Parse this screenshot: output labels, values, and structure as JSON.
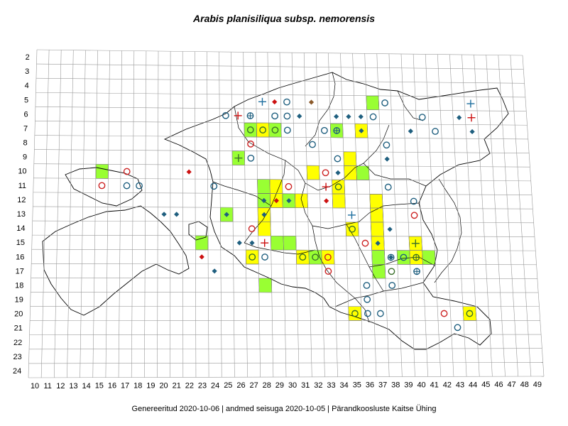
{
  "title": "Arabis planisiliqua subsp. nemorensis",
  "footer": {
    "generated": "Genereeritud 2020-10-06",
    "data_state": "andmed seisuga 2020-10-05",
    "org": "Pärandkoosluste Kaitse Ühing",
    "separator": "|"
  },
  "grid": {
    "x_labels": [
      "10",
      "11",
      "12",
      "13",
      "14",
      "15",
      "16",
      "17",
      "18",
      "19",
      "20",
      "21",
      "22",
      "23",
      "24",
      "25",
      "26",
      "27",
      "28",
      "29",
      "30",
      "31",
      "32",
      "33",
      "34",
      "35",
      "36",
      "37",
      "38",
      "39",
      "40",
      "41",
      "42",
      "43",
      "44",
      "45",
      "46",
      "47",
      "48",
      "49"
    ],
    "y_labels": [
      "2",
      "3",
      "4",
      "5",
      "6",
      "7",
      "8",
      "9",
      "10",
      "11",
      "12",
      "13",
      "14",
      "15",
      "16",
      "17",
      "18",
      "19",
      "20",
      "21",
      "22",
      "23",
      "24"
    ]
  },
  "colors": {
    "green": "#99ff33",
    "yellow": "#ffff00",
    "circle_blue": "#1f5f7f",
    "circle_red": "#cc2222",
    "diamond_blue": "#1f5f7f",
    "diamond_red": "#cc1111",
    "diamond_brown": "#8b5a2b",
    "plus_red": "#cc1111",
    "plus_blue": "#1f6f9f"
  },
  "cells": [
    {
      "c": 15,
      "r": 10,
      "fill": "green"
    },
    {
      "c": 23,
      "r": 15,
      "fill": "green"
    },
    {
      "c": 25,
      "r": 13,
      "fill": "green"
    },
    {
      "c": 26,
      "r": 9,
      "fill": "green"
    },
    {
      "c": 27,
      "r": 7,
      "fill": "green"
    },
    {
      "c": 28,
      "r": 7,
      "fill": "yellow"
    },
    {
      "c": 29,
      "r": 7,
      "fill": "green"
    },
    {
      "c": 27,
      "r": 16,
      "fill": "yellow"
    },
    {
      "c": 28,
      "r": 11,
      "fill": "green"
    },
    {
      "c": 28,
      "r": 12,
      "fill": "green"
    },
    {
      "c": 28,
      "r": 13,
      "fill": "yellow"
    },
    {
      "c": 28,
      "r": 14,
      "fill": "yellow"
    },
    {
      "c": 28,
      "r": 18,
      "fill": "green"
    },
    {
      "c": 29,
      "r": 11,
      "fill": "yellow"
    },
    {
      "c": 29,
      "r": 12,
      "fill": "yellow"
    },
    {
      "c": 29,
      "r": 15,
      "fill": "green"
    },
    {
      "c": 30,
      "r": 12,
      "fill": "green"
    },
    {
      "c": 30,
      "r": 15,
      "fill": "green"
    },
    {
      "c": 31,
      "r": 12,
      "fill": "yellow"
    },
    {
      "c": 31,
      "r": 16,
      "fill": "yellow"
    },
    {
      "c": 32,
      "r": 10,
      "fill": "yellow"
    },
    {
      "c": 32,
      "r": 16,
      "fill": "green"
    },
    {
      "c": 33,
      "r": 16,
      "fill": "yellow"
    },
    {
      "c": 34,
      "r": 11,
      "fill": "yellow"
    },
    {
      "c": 34,
      "r": 12,
      "fill": "yellow"
    },
    {
      "c": 34,
      "r": 7,
      "fill": "green"
    },
    {
      "c": 35,
      "r": 9,
      "fill": "yellow"
    },
    {
      "c": 35,
      "r": 10,
      "fill": "yellow"
    },
    {
      "c": 35,
      "r": 14,
      "fill": "yellow"
    },
    {
      "c": 35,
      "r": 20,
      "fill": "yellow"
    },
    {
      "c": 36,
      "r": 7,
      "fill": "yellow"
    },
    {
      "c": 36,
      "r": 10,
      "fill": "green"
    },
    {
      "c": 37,
      "r": 5,
      "fill": "green"
    },
    {
      "c": 37,
      "r": 12,
      "fill": "yellow"
    },
    {
      "c": 37,
      "r": 13,
      "fill": "yellow"
    },
    {
      "c": 37,
      "r": 14,
      "fill": "yellow"
    },
    {
      "c": 37,
      "r": 15,
      "fill": "yellow"
    },
    {
      "c": 37,
      "r": 16,
      "fill": "green"
    },
    {
      "c": 37,
      "r": 17,
      "fill": "green"
    },
    {
      "c": 39,
      "r": 16,
      "fill": "green"
    },
    {
      "c": 40,
      "r": 15,
      "fill": "yellow"
    },
    {
      "c": 40,
      "r": 16,
      "fill": "yellow"
    },
    {
      "c": 41,
      "r": 16,
      "fill": "green"
    },
    {
      "c": 44,
      "r": 20,
      "fill": "yellow"
    }
  ],
  "markers": [
    {
      "c": 15,
      "r": 11,
      "t": "circle",
      "k": "red"
    },
    {
      "c": 17,
      "r": 10,
      "t": "circle",
      "k": "red"
    },
    {
      "c": 17,
      "r": 11,
      "t": "circle",
      "k": "blue"
    },
    {
      "c": 18,
      "r": 11,
      "t": "circle",
      "k": "blue"
    },
    {
      "c": 22,
      "r": 10,
      "t": "diamond",
      "k": "red"
    },
    {
      "c": 20,
      "r": 13,
      "t": "diamond",
      "k": "blue"
    },
    {
      "c": 21,
      "r": 13,
      "t": "diamond",
      "k": "blue"
    },
    {
      "c": 23,
      "r": 16,
      "t": "diamond",
      "k": "red"
    },
    {
      "c": 24,
      "r": 17,
      "t": "diamond",
      "k": "blue"
    },
    {
      "c": 24,
      "r": 11,
      "t": "circle",
      "k": "blue"
    },
    {
      "c": 25,
      "r": 6,
      "t": "circle",
      "k": "blue"
    },
    {
      "c": 25,
      "r": 13,
      "t": "diamond",
      "k": "blue"
    },
    {
      "c": 26,
      "r": 6,
      "t": "plus",
      "k": "red"
    },
    {
      "c": 26,
      "r": 9,
      "t": "plus",
      "k": "green"
    },
    {
      "c": 26,
      "r": 15,
      "t": "diamond",
      "k": "blue"
    },
    {
      "c": 27,
      "r": 6,
      "t": "circleplus",
      "k": "blue"
    },
    {
      "c": 27,
      "r": 7,
      "t": "circle",
      "k": "green"
    },
    {
      "c": 27,
      "r": 8,
      "t": "circle",
      "k": "red"
    },
    {
      "c": 27,
      "r": 9,
      "t": "circle",
      "k": "blue"
    },
    {
      "c": 27,
      "r": 14,
      "t": "circle",
      "k": "red"
    },
    {
      "c": 27,
      "r": 15,
      "t": "diamond",
      "k": "blue"
    },
    {
      "c": 27,
      "r": 16,
      "t": "circle",
      "k": "green"
    },
    {
      "c": 28,
      "r": 5,
      "t": "plus",
      "k": "blue"
    },
    {
      "c": 28,
      "r": 7,
      "t": "circle",
      "k": "green"
    },
    {
      "c": 28,
      "r": 12,
      "t": "diamond",
      "k": "blue"
    },
    {
      "c": 28,
      "r": 13,
      "t": "diamond",
      "k": "blue"
    },
    {
      "c": 28,
      "r": 15,
      "t": "plus",
      "k": "red"
    },
    {
      "c": 28,
      "r": 16,
      "t": "circle",
      "k": "blue"
    },
    {
      "c": 29,
      "r": 5,
      "t": "diamond",
      "k": "red"
    },
    {
      "c": 29,
      "r": 6,
      "t": "circle",
      "k": "blue"
    },
    {
      "c": 29,
      "r": 7,
      "t": "circle",
      "k": "green"
    },
    {
      "c": 29,
      "r": 12,
      "t": "diamond",
      "k": "red"
    },
    {
      "c": 30,
      "r": 5,
      "t": "circle",
      "k": "blue"
    },
    {
      "c": 30,
      "r": 6,
      "t": "circle",
      "k": "blue"
    },
    {
      "c": 30,
      "r": 7,
      "t": "circle",
      "k": "blue"
    },
    {
      "c": 30,
      "r": 11,
      "t": "circle",
      "k": "red"
    },
    {
      "c": 30,
      "r": 12,
      "t": "diamond",
      "k": "blue"
    },
    {
      "c": 31,
      "r": 6,
      "t": "diamond",
      "k": "blue"
    },
    {
      "c": 31,
      "r": 16,
      "t": "circle",
      "k": "green"
    },
    {
      "c": 32,
      "r": 5,
      "t": "diamond",
      "k": "brown"
    },
    {
      "c": 32,
      "r": 8,
      "t": "circle",
      "k": "blue"
    },
    {
      "c": 32,
      "r": 16,
      "t": "circle",
      "k": "green"
    },
    {
      "c": 33,
      "r": 7,
      "t": "circle",
      "k": "blue"
    },
    {
      "c": 33,
      "r": 10,
      "t": "circle",
      "k": "red"
    },
    {
      "c": 33,
      "r": 11,
      "t": "plus",
      "k": "red"
    },
    {
      "c": 33,
      "r": 12,
      "t": "diamond",
      "k": "red"
    },
    {
      "c": 33,
      "r": 16,
      "t": "circle",
      "k": "red"
    },
    {
      "c": 33,
      "r": 17,
      "t": "circle",
      "k": "red"
    },
    {
      "c": 34,
      "r": 6,
      "t": "diamond",
      "k": "blue"
    },
    {
      "c": 34,
      "r": 7,
      "t": "circleplus",
      "k": "blue"
    },
    {
      "c": 34,
      "r": 9,
      "t": "circle",
      "k": "blue"
    },
    {
      "c": 34,
      "r": 10,
      "t": "diamond",
      "k": "blue"
    },
    {
      "c": 34,
      "r": 11,
      "t": "circle",
      "k": "green"
    },
    {
      "c": 35,
      "r": 6,
      "t": "diamond",
      "k": "blue"
    },
    {
      "c": 35,
      "r": 13,
      "t": "plus",
      "k": "blue"
    },
    {
      "c": 35,
      "r": 14,
      "t": "circle",
      "k": "green"
    },
    {
      "c": 35,
      "r": 20,
      "t": "circle",
      "k": "green"
    },
    {
      "c": 36,
      "r": 6,
      "t": "diamond",
      "k": "blue"
    },
    {
      "c": 36,
      "r": 7,
      "t": "diamond",
      "k": "blue"
    },
    {
      "c": 36,
      "r": 15,
      "t": "circle",
      "k": "red"
    },
    {
      "c": 36,
      "r": 18,
      "t": "circle",
      "k": "blue"
    },
    {
      "c": 36,
      "r": 19,
      "t": "circle",
      "k": "blue"
    },
    {
      "c": 36,
      "r": 20,
      "t": "circle",
      "k": "blue"
    },
    {
      "c": 37,
      "r": 6,
      "t": "circle",
      "k": "blue"
    },
    {
      "c": 37,
      "r": 15,
      "t": "diamond",
      "k": "blue"
    },
    {
      "c": 37,
      "r": 20,
      "t": "circle",
      "k": "blue"
    },
    {
      "c": 38,
      "r": 5,
      "t": "circle",
      "k": "blue"
    },
    {
      "c": 38,
      "r": 8,
      "t": "circle",
      "k": "blue"
    },
    {
      "c": 38,
      "r": 9,
      "t": "diamond",
      "k": "blue"
    },
    {
      "c": 38,
      "r": 11,
      "t": "circle",
      "k": "blue"
    },
    {
      "c": 38,
      "r": 14,
      "t": "diamond",
      "k": "blue"
    },
    {
      "c": 38,
      "r": 16,
      "t": "diamondcircle",
      "k": "blue"
    },
    {
      "c": 38,
      "r": 17,
      "t": "circle",
      "k": "green"
    },
    {
      "c": 38,
      "r": 18,
      "t": "circle",
      "k": "blue"
    },
    {
      "c": 39,
      "r": 16,
      "t": "circle",
      "k": "blue"
    },
    {
      "c": 40,
      "r": 7,
      "t": "diamond",
      "k": "blue"
    },
    {
      "c": 40,
      "r": 12,
      "t": "circle",
      "k": "blue"
    },
    {
      "c": 40,
      "r": 13,
      "t": "circle",
      "k": "red"
    },
    {
      "c": 40,
      "r": 15,
      "t": "plus",
      "k": "green"
    },
    {
      "c": 40,
      "r": 16,
      "t": "circleplus",
      "k": "green"
    },
    {
      "c": 40,
      "r": 17,
      "t": "circleplus",
      "k": "blue"
    },
    {
      "c": 41,
      "r": 6,
      "t": "circle",
      "k": "blue"
    },
    {
      "c": 42,
      "r": 7,
      "t": "circle",
      "k": "blue"
    },
    {
      "c": 42,
      "r": 20,
      "t": "circle",
      "k": "red"
    },
    {
      "c": 43,
      "r": 21,
      "t": "circle",
      "k": "blue"
    },
    {
      "c": 44,
      "r": 6,
      "t": "diamond",
      "k": "blue"
    },
    {
      "c": 44,
      "r": 20,
      "t": "circle",
      "k": "green"
    },
    {
      "c": 45,
      "r": 5,
      "t": "plus",
      "k": "blue"
    },
    {
      "c": 45,
      "r": 6,
      "t": "plus",
      "k": "red"
    },
    {
      "c": 45,
      "r": 7,
      "t": "diamond",
      "k": "blue"
    }
  ]
}
